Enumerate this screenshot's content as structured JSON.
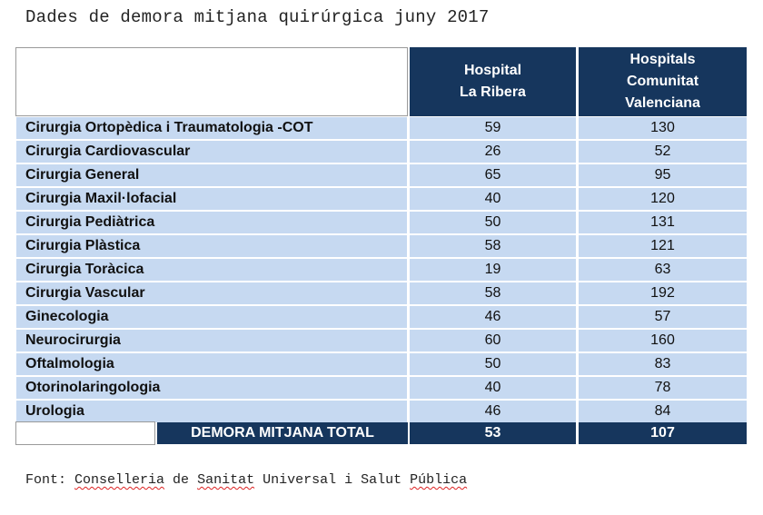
{
  "title": "Dades de demora mitjana quirúrgica juny 2017",
  "headers": {
    "col1": [
      "Hospital",
      "La Ribera"
    ],
    "col2": [
      "Hospitals",
      "Comunitat",
      "Valenciana"
    ]
  },
  "rows": [
    {
      "name": "Cirurgia Ortopèdica i Traumatologia -COT",
      "ribera": "59",
      "cv": "130"
    },
    {
      "name": "Cirurgia Cardiovascular",
      "ribera": "26",
      "cv": "52"
    },
    {
      "name": "Cirurgia General",
      "ribera": "65",
      "cv": "95"
    },
    {
      "name": "Cirurgia Maxil·lofacial",
      "ribera": "40",
      "cv": "120"
    },
    {
      "name": "Cirurgia Pediàtrica",
      "ribera": "50",
      "cv": "131"
    },
    {
      "name": "Cirurgia Plàstica",
      "ribera": "58",
      "cv": "121"
    },
    {
      "name": "Cirurgia Toràcica",
      "ribera": "19",
      "cv": "63"
    },
    {
      "name": "Cirurgia Vascular",
      "ribera": "58",
      "cv": "192"
    },
    {
      "name": "Ginecologia",
      "ribera": "46",
      "cv": "57"
    },
    {
      "name": "Neurocirurgia",
      "ribera": "60",
      "cv": "160"
    },
    {
      "name": "Oftalmologia",
      "ribera": "50",
      "cv": "83"
    },
    {
      "name": "Otorinolaringologia",
      "ribera": "40",
      "cv": "78"
    },
    {
      "name": "Urologia",
      "ribera": "46",
      "cv": "84"
    }
  ],
  "total": {
    "label": "DEMORA MITJANA TOTAL",
    "ribera": "53",
    "cv": "107"
  },
  "source": {
    "prefix": "Font: ",
    "words": [
      "Conselleria",
      " de ",
      "Sanitat",
      " Universal i Salut ",
      "Pública"
    ]
  },
  "colors": {
    "header_bg": "#16365d",
    "row_bg": "#c6d9f1",
    "header_text": "#ffffff"
  }
}
